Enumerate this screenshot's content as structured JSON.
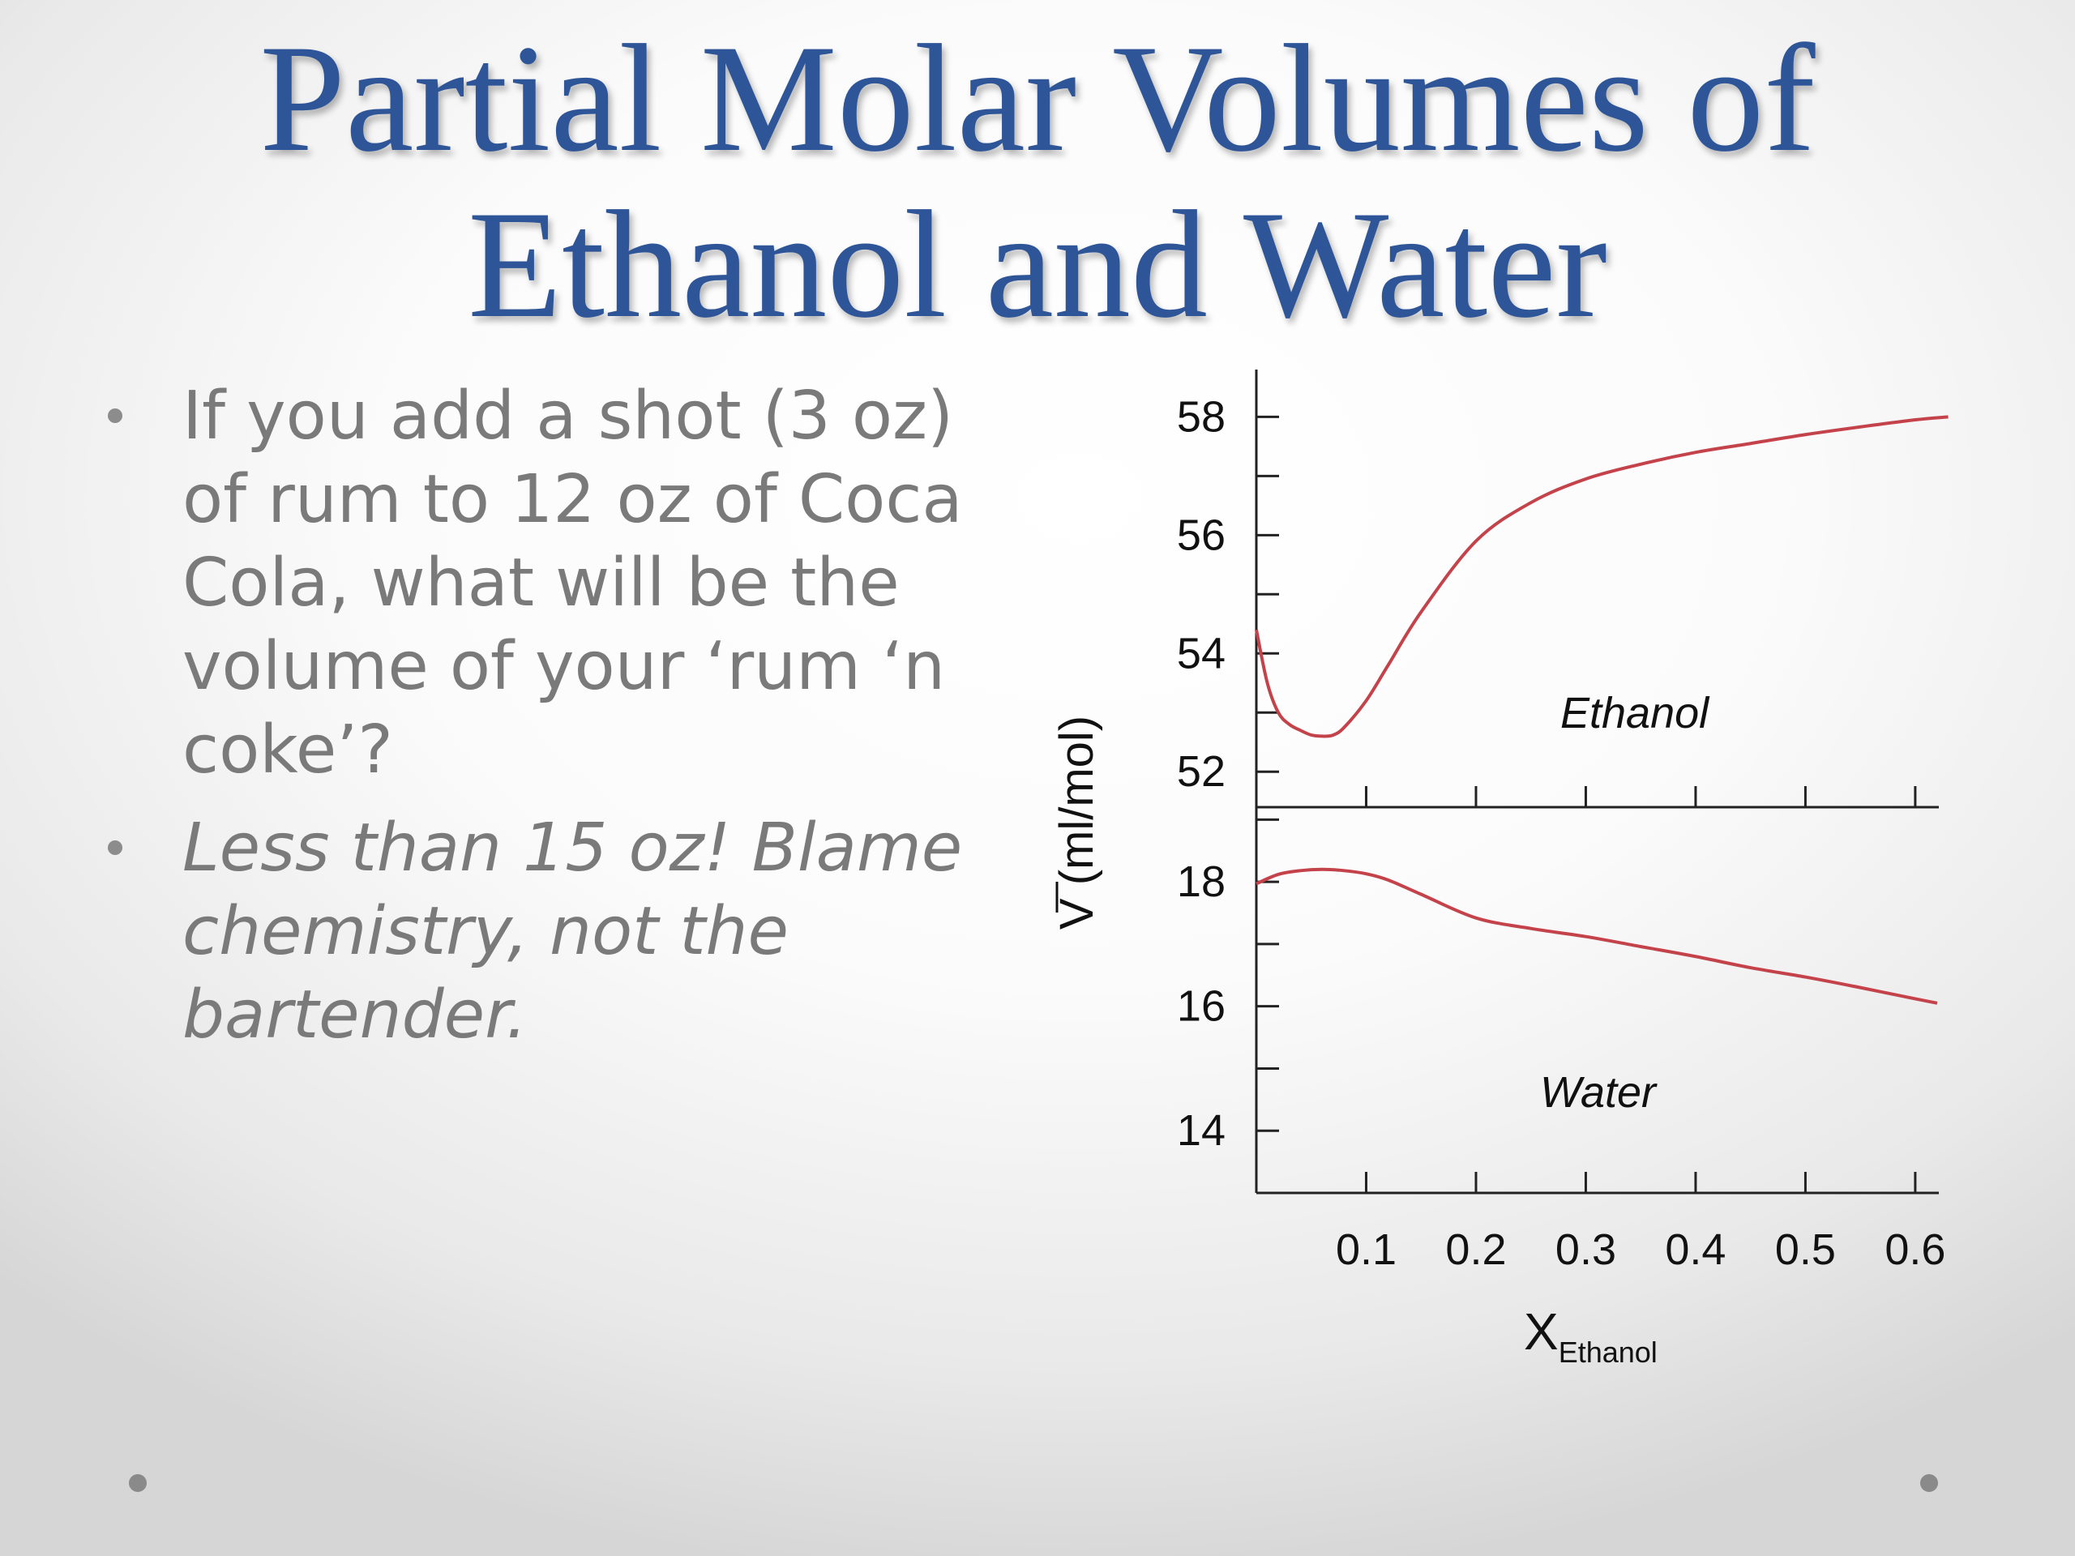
{
  "slide": {
    "title_line1": "Partial Molar Volumes of",
    "title_line2": "Ethanol and Water",
    "bullets": [
      "If you add a shot (3 oz) of rum to 12 oz of Coca Cola, what will be the volume of your ‘rum ‘n coke’?",
      "Less than 15 oz! Blame chemistry, not the bartender."
    ],
    "colors": {
      "title": "#2e5597",
      "body_text": "#7a7a7a",
      "curve": "#c4434b"
    }
  },
  "chart_data": {
    "type": "line",
    "title": "",
    "xlabel": "X",
    "xlabel_subscript": "Ethanol",
    "ylabel": "V (ml/mol)",
    "ylabel_overbar": true,
    "x_ticks": [
      "0.1",
      "0.2",
      "0.3",
      "0.4",
      "0.5",
      "0.6"
    ],
    "x_tick_values": [
      0.1,
      0.2,
      0.3,
      0.4,
      0.5,
      0.6
    ],
    "xlim": [
      0,
      0.62
    ],
    "panels": [
      {
        "name": "Ethanol",
        "ylim": [
          51.4,
          58.8
        ],
        "y_ticks": [
          "52",
          "54",
          "56",
          "58"
        ],
        "y_tick_values": [
          52,
          54,
          56,
          58
        ],
        "series": [
          {
            "name": "Ethanol",
            "x": [
              0,
              0.01,
              0.02,
              0.03,
              0.04,
              0.05,
              0.06,
              0.07,
              0.08,
              0.1,
              0.12,
              0.15,
              0.2,
              0.25,
              0.3,
              0.35,
              0.4,
              0.45,
              0.5,
              0.55,
              0.6,
              0.63
            ],
            "values": [
              54.4,
              53.5,
              53.0,
              52.8,
              52.7,
              52.62,
              52.6,
              52.62,
              52.75,
              53.2,
              53.8,
              54.7,
              55.9,
              56.55,
              56.95,
              57.2,
              57.4,
              57.55,
              57.7,
              57.83,
              57.95,
              58.0
            ]
          }
        ]
      },
      {
        "name": "Water",
        "ylim": [
          13.0,
          19.2
        ],
        "y_ticks": [
          "14",
          "16",
          "18"
        ],
        "y_tick_values": [
          14,
          16,
          18
        ],
        "series": [
          {
            "name": "Water",
            "x": [
              0,
              0.02,
              0.04,
              0.06,
              0.08,
              0.1,
              0.12,
              0.15,
              0.2,
              0.25,
              0.3,
              0.35,
              0.4,
              0.45,
              0.5,
              0.55,
              0.6,
              0.62
            ],
            "values": [
              17.97,
              18.12,
              18.18,
              18.2,
              18.18,
              18.13,
              18.03,
              17.8,
              17.42,
              17.25,
              17.12,
              16.96,
              16.8,
              16.62,
              16.47,
              16.3,
              16.12,
              16.05
            ]
          }
        ]
      }
    ],
    "grid": false,
    "legend": "none"
  }
}
